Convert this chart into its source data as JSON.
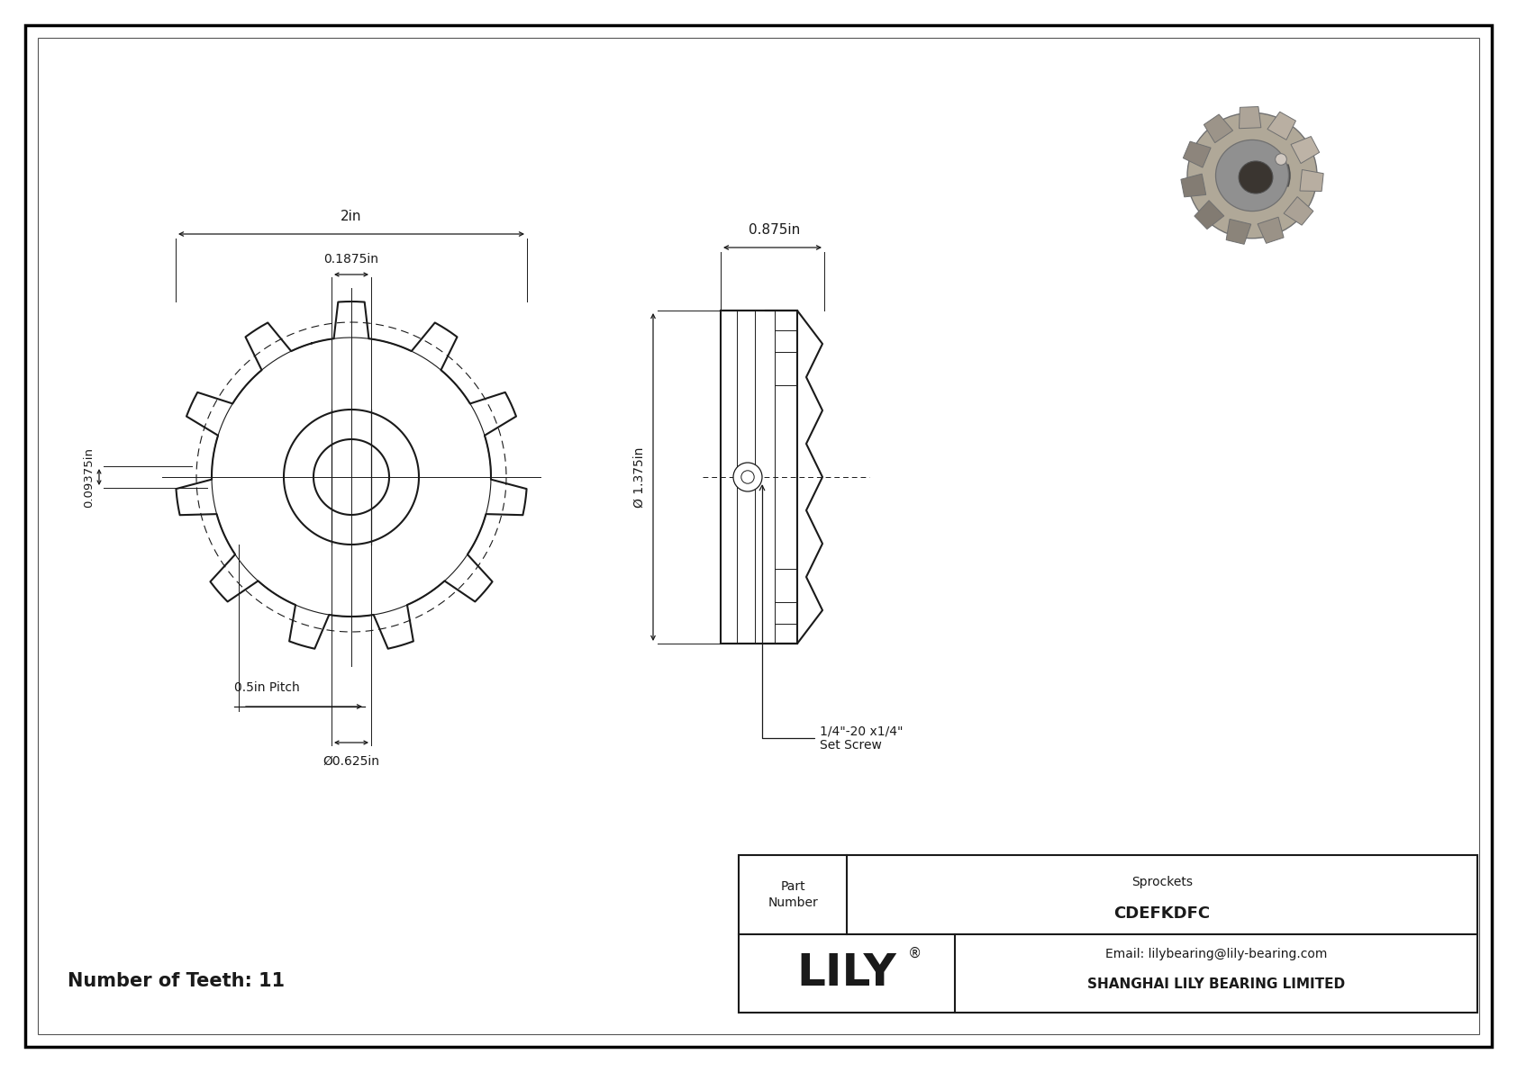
{
  "bg_color": "#ffffff",
  "line_color": "#1a1a1a",
  "fig_width": 16.84,
  "fig_height": 11.91,
  "annotations": {
    "dim_2in": "2in",
    "dim_0875": "0.875in",
    "dim_01875": "0.1875in",
    "dim_009375": "0.09375in",
    "dim_dia_1375": "Ø 1.375in",
    "dim_pitch": "0.5in Pitch",
    "dim_dia_bore": "Ø0.625in",
    "set_screw": "1/4\"-20 x1/4\"\nSet Screw"
  },
  "title_block": {
    "company": "SHANGHAI LILY BEARING LIMITED",
    "email": "Email: lilybearing@lily-bearing.com",
    "part_number": "CDEFKDFC",
    "category": "Sprockets",
    "lily_text": "LILY",
    "registered": "®",
    "part_label": "Part\nNumber"
  },
  "teeth_label": "Number of Teeth: 11"
}
